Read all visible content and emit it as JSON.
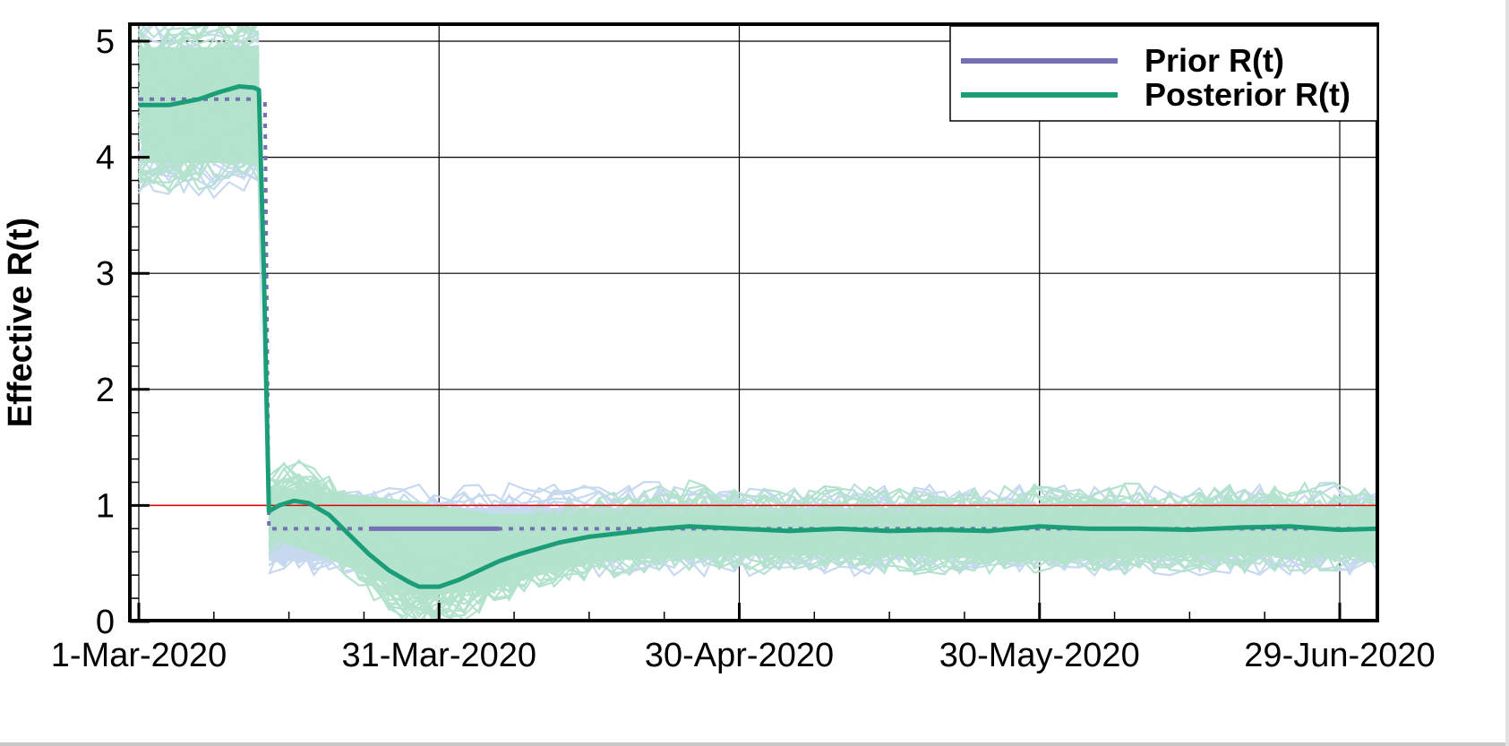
{
  "chart_data": {
    "type": "line",
    "title": "",
    "xlabel": "",
    "ylabel": "Effective R(t)",
    "ylim": [
      0,
      5.15
    ],
    "yticks": [
      0,
      1,
      2,
      3,
      4,
      5
    ],
    "xticks": [
      "1-Mar-2020",
      "31-Mar-2020",
      "30-Apr-2020",
      "30-May-2020",
      "29-Jun-2020"
    ],
    "xtick_days": [
      0,
      30,
      60,
      90,
      120
    ],
    "xlim_days": [
      -1,
      124
    ],
    "grid": true,
    "legend_position": "upper right",
    "reference_line": {
      "y": 1,
      "color": "#e00000"
    },
    "series": [
      {
        "name": "Prior R(t)",
        "color": "#7570b3",
        "style": "dotted",
        "ensemble_color": "#c6d9ef",
        "x_days": [
          0,
          12,
          12.6,
          13,
          23,
          30,
          35,
          124
        ],
        "values": [
          4.5,
          4.5,
          4.5,
          0.8,
          0.8,
          0.8,
          0.8,
          0.8
        ],
        "ensemble_band": {
          "upper": [
            4.95,
            4.95,
            1.15,
            1.15,
            1.1,
            1.1,
            1.1,
            1.1
          ],
          "lower": [
            4.0,
            4.0,
            0.4,
            0.4,
            0.4,
            0.4,
            0.45,
            0.45
          ]
        }
      },
      {
        "name": "Posterior R(t)",
        "color": "#1b9e77",
        "style": "solid",
        "ensemble_color": "#b3e2cd",
        "x_days": [
          0,
          3,
          6,
          8,
          10,
          11.5,
          12,
          12.5,
          13,
          14,
          15.5,
          17,
          19,
          21,
          23,
          25,
          27,
          28,
          30,
          32,
          34,
          36,
          38,
          40,
          42,
          45,
          48,
          52,
          55,
          60,
          65,
          70,
          75,
          80,
          85,
          90,
          95,
          100,
          105,
          110,
          115,
          120,
          124
        ],
        "values": [
          4.45,
          4.45,
          4.5,
          4.56,
          4.61,
          4.6,
          4.58,
          3.0,
          0.95,
          1.0,
          1.04,
          1.02,
          0.92,
          0.75,
          0.58,
          0.44,
          0.34,
          0.3,
          0.3,
          0.36,
          0.44,
          0.52,
          0.58,
          0.63,
          0.68,
          0.73,
          0.76,
          0.8,
          0.82,
          0.8,
          0.78,
          0.8,
          0.78,
          0.79,
          0.78,
          0.82,
          0.8,
          0.8,
          0.79,
          0.81,
          0.82,
          0.79,
          0.8
        ],
        "ensemble_band": {
          "upper": [
            4.95,
            4.95,
            1.25,
            1.25,
            1.15,
            1.05,
            1.05,
            1.05,
            1.05,
            1.1,
            1.1,
            1.05,
            1.1
          ],
          "lower": [
            3.95,
            3.95,
            0.6,
            0.45,
            0.1,
            0.15,
            0.4,
            0.45,
            0.45,
            0.4,
            0.45,
            0.45,
            0.45
          ],
          "x_days": [
            0,
            12,
            13,
            18,
            28,
            35,
            45,
            60,
            75,
            90,
            105,
            115,
            124
          ]
        }
      }
    ]
  },
  "legend": {
    "items": [
      {
        "label": "Prior R(t)",
        "color": "#7570b3"
      },
      {
        "label": "Posterior R(t)",
        "color": "#1b9e77"
      }
    ]
  },
  "axes": {
    "ylabel": "Effective R(t)",
    "ytick_labels": [
      "0",
      "1",
      "2",
      "3",
      "4",
      "5"
    ],
    "xtick_labels": [
      "1-Mar-2020",
      "31-Mar-2020",
      "30-Apr-2020",
      "30-May-2020",
      "29-Jun-2020"
    ]
  }
}
